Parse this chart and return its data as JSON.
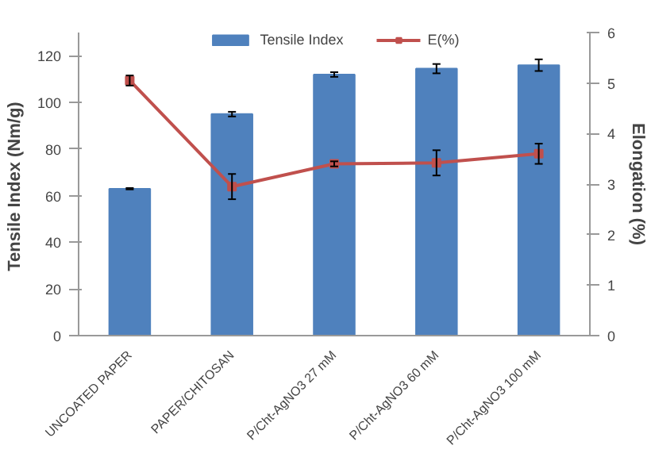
{
  "chart_data": {
    "type": "bar",
    "categories": [
      "UNCOATED PAPER",
      "PAPER/CHITOSAN",
      "P/Cht-AgNO3 27 mM",
      "P/Cht-AgNO3 60 mM",
      "P/Cht-AgNO3 100 mM"
    ],
    "ylabel": "Tensile Index  (Nm/g)",
    "y2label": "Elongation (%)",
    "ylim": [
      0,
      130
    ],
    "yticks": [
      0,
      20,
      40,
      60,
      80,
      100,
      120
    ],
    "y2lim": [
      0,
      6
    ],
    "y2ticks": [
      0,
      1,
      2,
      3,
      4,
      5,
      6
    ],
    "series": [
      {
        "name": "Tensile Index",
        "color": "#4f81bd",
        "values": [
          63,
          95,
          112,
          114.5,
          116
        ],
        "errors": [
          0.3,
          1,
          1,
          2,
          2.5
        ]
      },
      {
        "name": "E(%)",
        "type": "line",
        "axis": "y2",
        "color": "#c0504d",
        "marker": "square",
        "values": [
          5.05,
          2.95,
          3.4,
          3.42,
          3.6
        ],
        "errors": [
          0.1,
          0.25,
          0.05,
          0.25,
          0.2
        ]
      }
    ],
    "legend": "top",
    "grid": false
  }
}
